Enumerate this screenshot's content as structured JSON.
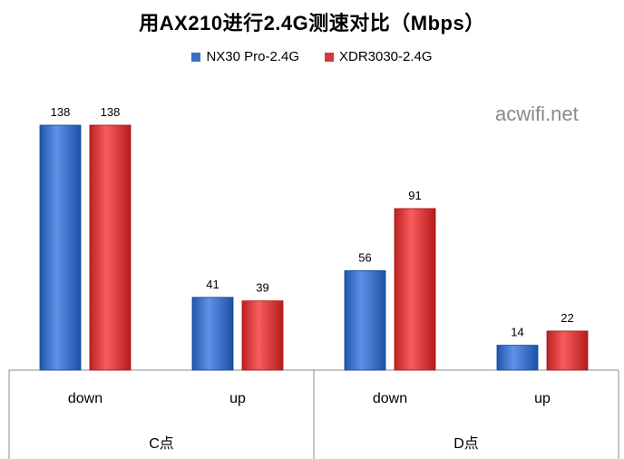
{
  "chart_data": {
    "type": "bar",
    "title": "用AX210进行2.4G测速对比（Mbps）",
    "xlabel": "",
    "ylabel": "",
    "ylim": [
      0,
      138
    ],
    "grid": false,
    "legend_position": "top-center",
    "groups": [
      {
        "name": "C点",
        "categories": [
          "down",
          "up"
        ]
      },
      {
        "name": "D点",
        "categories": [
          "down",
          "up"
        ]
      }
    ],
    "categories": [
      "down",
      "up",
      "down",
      "up"
    ],
    "series": [
      {
        "name": "NX30 Pro-2.4G",
        "color": "#3a6fc4",
        "values": [
          138,
          41,
          56,
          14
        ]
      },
      {
        "name": "XDR3030-2.4G",
        "color": "#d43a3a",
        "values": [
          138,
          39,
          91,
          22
        ]
      }
    ]
  },
  "watermark": "acwifi.net"
}
